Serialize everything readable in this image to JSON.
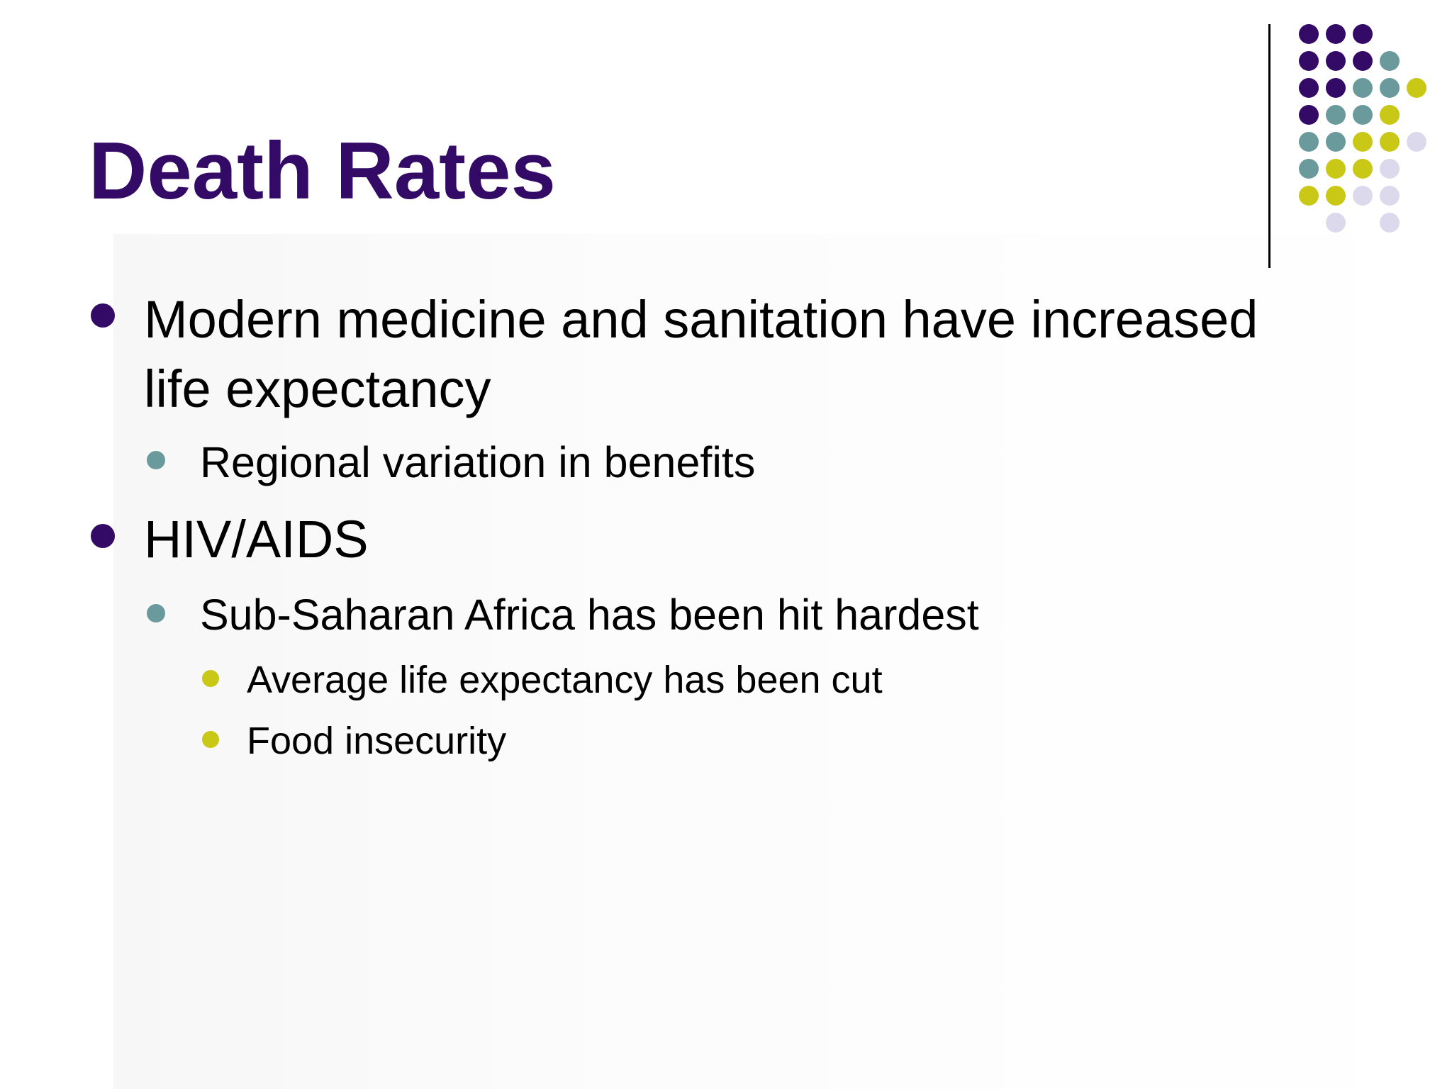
{
  "slide": {
    "title": "Death Rates",
    "bullets": {
      "b1": "Modern medicine and sanitation have increased",
      "b1_cont": "life expectancy",
      "b1_sub1": "Regional variation in benefits",
      "b2": "HIV/AIDS",
      "b2_sub1": "Sub-Saharan Africa has been hit hardest",
      "b2_sub1_sub1": "Average life expectancy has been cut",
      "b2_sub1_sub2": "Food insecurity"
    }
  },
  "colors": {
    "title": "#330a66",
    "bullet_level1": "#330a66",
    "bullet_level2": "#6b9a9c",
    "bullet_level3": "#c9c816",
    "decor_dots": [
      "#330a66",
      "#6b9a9c",
      "#c9c816",
      "#dcd9ec"
    ]
  }
}
